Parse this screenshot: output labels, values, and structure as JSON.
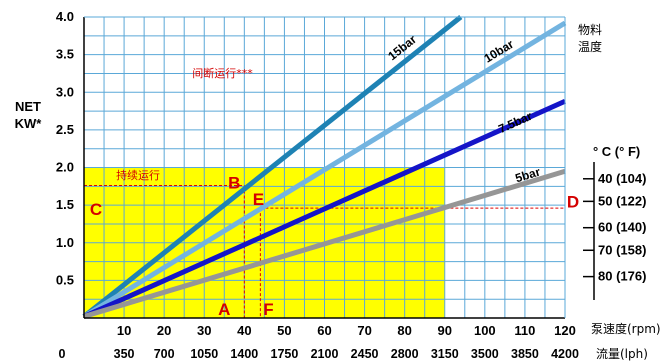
{
  "chart_data": {
    "type": "line",
    "xlabel": "泵速度(rpm)",
    "x2label": "流量(lph)",
    "ylabel": [
      "NET",
      "KW*"
    ],
    "xlim": [
      0,
      120
    ],
    "ylim": [
      0,
      4.0
    ],
    "x_ticks": [
      "10",
      "20",
      "30",
      "40",
      "50",
      "60",
      "70",
      "80",
      "90",
      "100",
      "110",
      "120"
    ],
    "x_tick_values": [
      10,
      20,
      30,
      40,
      50,
      60,
      70,
      80,
      90,
      100,
      110,
      120
    ],
    "flow_ticks": [
      "0",
      "350",
      "700",
      "1050",
      "1400",
      "1750",
      "2100",
      "2450",
      "2800",
      "3150",
      "3500",
      "3850",
      "4200"
    ],
    "flow_tick_values": [
      0,
      10,
      20,
      30,
      40,
      50,
      60,
      70,
      80,
      90,
      100,
      110,
      120
    ],
    "y_ticks": [
      "0.5",
      "1.0",
      "1.5",
      "2.0",
      "2.5",
      "3.0",
      "3.5",
      "4.0"
    ],
    "y_tick_values": [
      0.5,
      1.0,
      1.5,
      2.0,
      2.5,
      3.0,
      3.5,
      4.0
    ],
    "grid": true,
    "series": [
      {
        "name": "15bar",
        "color": "#1e82b4",
        "points": [
          [
            0,
            0.02
          ],
          [
            94,
            4.0
          ]
        ]
      },
      {
        "name": "10bar",
        "color": "#73b4e0",
        "points": [
          [
            0,
            0.02
          ],
          [
            120,
            3.92
          ]
        ]
      },
      {
        "name": "7.5bar",
        "color": "#1414c8",
        "points": [
          [
            0,
            0.02
          ],
          [
            120,
            2.88
          ]
        ]
      },
      {
        "name": "5bar",
        "color": "#969696",
        "points": [
          [
            0,
            0.02
          ],
          [
            120,
            1.95
          ]
        ]
      }
    ],
    "series_label_positions": [
      [
        80,
        3.55
      ],
      [
        104,
        3.5
      ],
      [
        108,
        2.55
      ],
      [
        111,
        1.85
      ]
    ],
    "regions": [
      {
        "label": "持续运行",
        "x": [
          0,
          90
        ],
        "y": [
          0,
          2.0
        ],
        "color": "#ffff00"
      },
      {
        "label": "间断运行***",
        "x": [
          0,
          120
        ],
        "y": [
          0,
          4.0
        ],
        "color": "#ffffff"
      }
    ],
    "region_label_positions": [
      [
        8,
        1.85
      ],
      [
        27,
        3.2
      ]
    ],
    "reference_lines": [
      {
        "from": [
          0,
          1.76
        ],
        "to": [
          40,
          1.76
        ]
      },
      {
        "from": [
          40,
          1.76
        ],
        "to": [
          40,
          0
        ]
      },
      {
        "from": [
          44,
          1.46
        ],
        "to": [
          120,
          1.46
        ]
      },
      {
        "from": [
          44,
          1.46
        ],
        "to": [
          44,
          0
        ]
      }
    ],
    "point_labels": [
      {
        "label": "A",
        "x": 35,
        "y": 0.12
      },
      {
        "label": "B",
        "x": 37.5,
        "y": 1.8
      },
      {
        "label": "C",
        "x": 3,
        "y": 1.45
      },
      {
        "label": "D",
        "x": 122,
        "y": 1.55
      },
      {
        "label": "E",
        "x": 43.5,
        "y": 1.58
      },
      {
        "label": "F",
        "x": 46,
        "y": 0.12
      }
    ],
    "temperature_scale": {
      "title": [
        "物料",
        "温度"
      ],
      "unit_header": "° C   (° F)",
      "entries": [
        "40 (104)",
        "50 (122)",
        "60 (140)",
        "70 (158)",
        "80 (176)"
      ],
      "entry_levels": [
        1.85,
        1.55,
        1.2,
        0.9,
        0.55
      ]
    }
  }
}
